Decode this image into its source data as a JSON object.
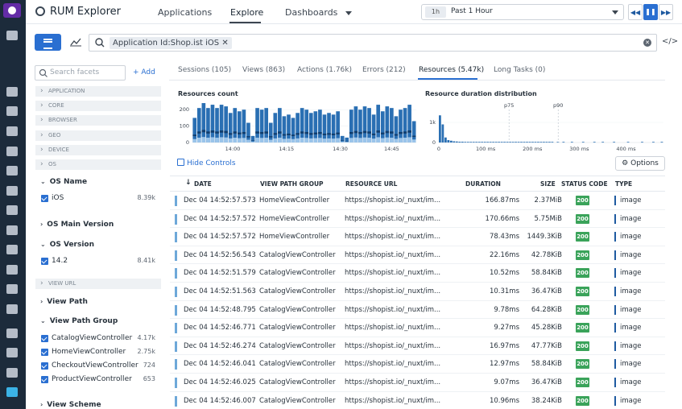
{
  "app": {
    "title": "RUM Explorer"
  },
  "nav": {
    "applications": "Applications",
    "explore": "Explore",
    "dashboards": "Dashboards"
  },
  "time": {
    "chip": "1h",
    "range": "Past 1 Hour"
  },
  "search": {
    "pill": "Application Id:Shop.ist iOS"
  },
  "facets": {
    "search_placeholder": "Search facets",
    "add_label": "Add",
    "categories": [
      "APPLICATION",
      "CORE",
      "BROWSER",
      "GEO",
      "DEVICE",
      "OS",
      "VIEW URL"
    ],
    "os_name": {
      "title": "OS Name",
      "items": [
        {
          "label": "iOS",
          "count": "8.39k"
        }
      ]
    },
    "os_main_version": {
      "title": "OS Main Version"
    },
    "os_version": {
      "title": "OS Version",
      "items": [
        {
          "label": "14.2",
          "count": "8.41k"
        }
      ]
    },
    "view_path": {
      "title": "View Path"
    },
    "view_path_group": {
      "title": "View Path Group",
      "items": [
        {
          "label": "CatalogViewController",
          "count": "4.17k"
        },
        {
          "label": "HomeViewController",
          "count": "2.75k"
        },
        {
          "label": "CheckoutViewController",
          "count": "724"
        },
        {
          "label": "ProductViewController",
          "count": "653"
        }
      ]
    },
    "view_scheme": {
      "title": "View Scheme"
    }
  },
  "tabs": [
    "Sessions (105)",
    "Views (863)",
    "Actions (1.76k)",
    "Errors (212)",
    "Resources (5.47k)",
    "Long Tasks (0)"
  ],
  "chart_data": [
    {
      "type": "bar",
      "title": "Resources count",
      "x_tick_labels": [
        "14:00",
        "14:15",
        "14:30",
        "14:45"
      ],
      "y_tick_labels": [
        "0",
        "100",
        "200"
      ],
      "ylim": [
        0,
        250
      ],
      "values": [
        150,
        210,
        240,
        210,
        230,
        210,
        230,
        220,
        180,
        210,
        190,
        200,
        120,
        40,
        210,
        200,
        210,
        120,
        180,
        210,
        160,
        170,
        150,
        180,
        210,
        200,
        180,
        190,
        200,
        170,
        180,
        170,
        190,
        40,
        30,
        200,
        220,
        200,
        220,
        210,
        170,
        230,
        190,
        220,
        210,
        160,
        200,
        210,
        230,
        130
      ]
    },
    {
      "type": "bar",
      "title": "Resource duration distribution",
      "x_tick_labels": [
        "0",
        "100 ms",
        "200 ms",
        "300 ms",
        "400 ms"
      ],
      "y_tick_labels": [
        "0",
        "1k"
      ],
      "markers": [
        "p75",
        "p90"
      ],
      "xlim": [
        0,
        480
      ],
      "ylim": [
        0,
        1400
      ],
      "values": [
        1350,
        900,
        250,
        120,
        90,
        60,
        50,
        40,
        40,
        30,
        30,
        25,
        20,
        20,
        15,
        15,
        12,
        10,
        10,
        8,
        8,
        6,
        6,
        5,
        5,
        4,
        4,
        3,
        3,
        3,
        2,
        2,
        2,
        2,
        1,
        1,
        1,
        1,
        1,
        1,
        1,
        0,
        1,
        0,
        1,
        0,
        0,
        1,
        0,
        0,
        0,
        1,
        0,
        0,
        0,
        1,
        0,
        0,
        1,
        0,
        0,
        0,
        1,
        0,
        0,
        0,
        0,
        1,
        0,
        0,
        0,
        0,
        1,
        0,
        0,
        0,
        1,
        0,
        0,
        1
      ]
    }
  ],
  "controls": {
    "hide": "Hide Controls",
    "options": "Options"
  },
  "table": {
    "headers": [
      "DATE",
      "VIEW PATH GROUP",
      "RESOURCE URL",
      "DURATION",
      "SIZE",
      "STATUS CODE",
      "TYPE"
    ],
    "rows": [
      [
        "Dec 04 14:52:57.573",
        "HomeViewController",
        "https://shopist.io/_nuxt/im...",
        "166.87ms",
        "2.37MiB",
        "200",
        "image"
      ],
      [
        "Dec 04 14:52:57.572",
        "HomeViewController",
        "https://shopist.io/_nuxt/im...",
        "170.66ms",
        "5.75MiB",
        "200",
        "image"
      ],
      [
        "Dec 04 14:52:57.572",
        "HomeViewController",
        "https://shopist.io/_nuxt/im...",
        "78.43ms",
        "1449.3KiB",
        "200",
        "image"
      ],
      [
        "Dec 04 14:52:56.543",
        "CatalogViewController",
        "https://shopist.io/_nuxt/im...",
        "22.16ms",
        "42.78KiB",
        "200",
        "image"
      ],
      [
        "Dec 04 14:52:51.579",
        "CatalogViewController",
        "https://shopist.io/_nuxt/im...",
        "10.52ms",
        "58.84KiB",
        "200",
        "image"
      ],
      [
        "Dec 04 14:52:51.563",
        "CatalogViewController",
        "https://shopist.io/_nuxt/im...",
        "10.31ms",
        "36.47KiB",
        "200",
        "image"
      ],
      [
        "Dec 04 14:52:48.795",
        "CatalogViewController",
        "https://shopist.io/_nuxt/im...",
        "9.78ms",
        "64.28KiB",
        "200",
        "image"
      ],
      [
        "Dec 04 14:52:46.771",
        "CatalogViewController",
        "https://shopist.io/_nuxt/im...",
        "9.27ms",
        "45.28KiB",
        "200",
        "image"
      ],
      [
        "Dec 04 14:52:46.274",
        "CatalogViewController",
        "https://shopist.io/_nuxt/im...",
        "16.97ms",
        "47.77KiB",
        "200",
        "image"
      ],
      [
        "Dec 04 14:52:46.041",
        "CatalogViewController",
        "https://shopist.io/_nuxt/im...",
        "12.97ms",
        "58.84KiB",
        "200",
        "image"
      ],
      [
        "Dec 04 14:52:46.025",
        "CatalogViewController",
        "https://shopist.io/_nuxt/im...",
        "9.07ms",
        "36.47KiB",
        "200",
        "image"
      ],
      [
        "Dec 04 14:52:46.007",
        "CatalogViewController",
        "https://shopist.io/_nuxt/im...",
        "10.96ms",
        "38.24KiB",
        "200",
        "image"
      ]
    ]
  }
}
